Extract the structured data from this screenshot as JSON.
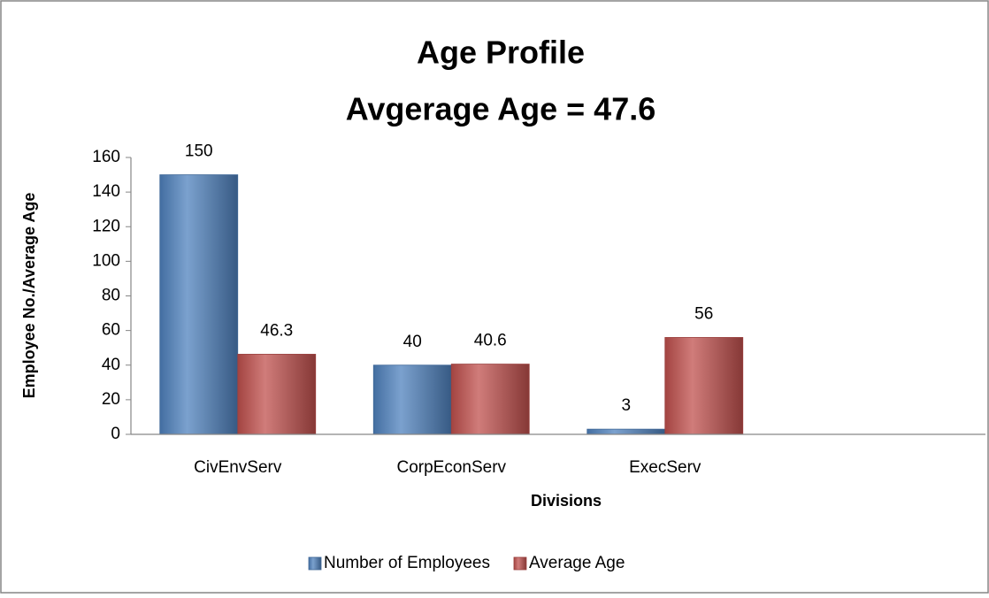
{
  "chart_data": {
    "type": "bar",
    "title": "Age Profile",
    "subtitle": "Avgerage Age = 47.6",
    "x_label": "Divisions",
    "y_label": "Employee No./Average Age",
    "categories": [
      "CivEnvServ",
      "CorpEconServ",
      "ExecServ",
      null
    ],
    "series": [
      {
        "name": "Number of Employees",
        "color": "#4f81bd",
        "values": [
          150,
          40,
          3,
          null
        ]
      },
      {
        "name": "Average Age",
        "color": "#c0504d",
        "values": [
          46.3,
          40.6,
          56,
          null
        ]
      }
    ],
    "ylim": [
      0,
      160
    ],
    "yticks": [
      0,
      20,
      40,
      60,
      80,
      100,
      120,
      140,
      160
    ],
    "grid": false,
    "legend": "bottom"
  }
}
